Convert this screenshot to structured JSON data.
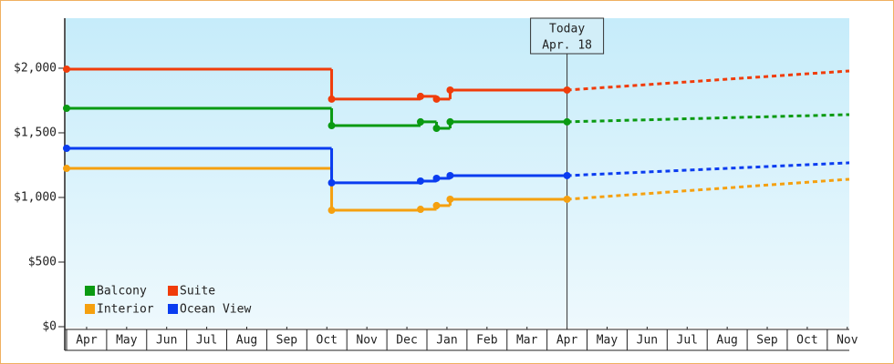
{
  "chart_data": {
    "type": "step-line",
    "x": [
      0,
      6.62,
      8.84,
      9.24,
      9.58,
      12.5
    ],
    "forecast_x": [
      12.5,
      19.55
    ],
    "xlim": [
      0,
      19.55
    ],
    "xticks": [
      {
        "value": 0.5,
        "label": "Apr"
      },
      {
        "value": 1.5,
        "label": "May"
      },
      {
        "value": 2.5,
        "label": "Jun"
      },
      {
        "value": 3.5,
        "label": "Jul"
      },
      {
        "value": 4.5,
        "label": "Aug"
      },
      {
        "value": 5.5,
        "label": "Sep"
      },
      {
        "value": 6.5,
        "label": "Oct"
      },
      {
        "value": 7.5,
        "label": "Nov"
      },
      {
        "value": 8.5,
        "label": "Dec"
      },
      {
        "value": 9.5,
        "label": "Jan"
      },
      {
        "value": 10.5,
        "label": "Feb"
      },
      {
        "value": 11.5,
        "label": "Mar"
      },
      {
        "value": 12.5,
        "label": "Apr"
      },
      {
        "value": 13.5,
        "label": "May"
      },
      {
        "value": 14.5,
        "label": "Jun"
      },
      {
        "value": 15.5,
        "label": "Jul"
      },
      {
        "value": 16.5,
        "label": "Aug"
      },
      {
        "value": 17.5,
        "label": "Sep"
      },
      {
        "value": 18.5,
        "label": "Oct"
      },
      {
        "value": 19.5,
        "label": "Nov"
      }
    ],
    "ylim": [
      0,
      2387
    ],
    "yticks": [
      {
        "value": 0,
        "label": "$0"
      },
      {
        "value": 500,
        "label": "$500"
      },
      {
        "value": 1000,
        "label": "$1,000"
      },
      {
        "value": 1500,
        "label": "$1,500"
      },
      {
        "value": 2000,
        "label": "$2,000"
      }
    ],
    "grid": false,
    "legend": "bottom-left",
    "series": [
      {
        "name": "Balcony",
        "color": "#0a9a12",
        "values": [
          1690,
          1556,
          1585,
          1535,
          1585,
          1585
        ],
        "forecast": [
          1585,
          1641
        ]
      },
      {
        "name": "Suite",
        "color": "#f03c0a",
        "values": [
          1993,
          1761,
          1782,
          1761,
          1831,
          1831
        ],
        "forecast": [
          1831,
          1979
        ]
      },
      {
        "name": "Interior",
        "color": "#f5a00f",
        "values": [
          1225,
          901,
          908,
          937,
          986,
          986
        ],
        "forecast": [
          986,
          1141
        ]
      },
      {
        "name": "Ocean View",
        "color": "#0a3cf0",
        "values": [
          1380,
          1113,
          1127,
          1148,
          1169,
          1169
        ],
        "forecast": [
          1169,
          1268
        ]
      }
    ],
    "annotation": {
      "x": 12.5,
      "lines": [
        "Today",
        "Apr. 18"
      ]
    }
  }
}
